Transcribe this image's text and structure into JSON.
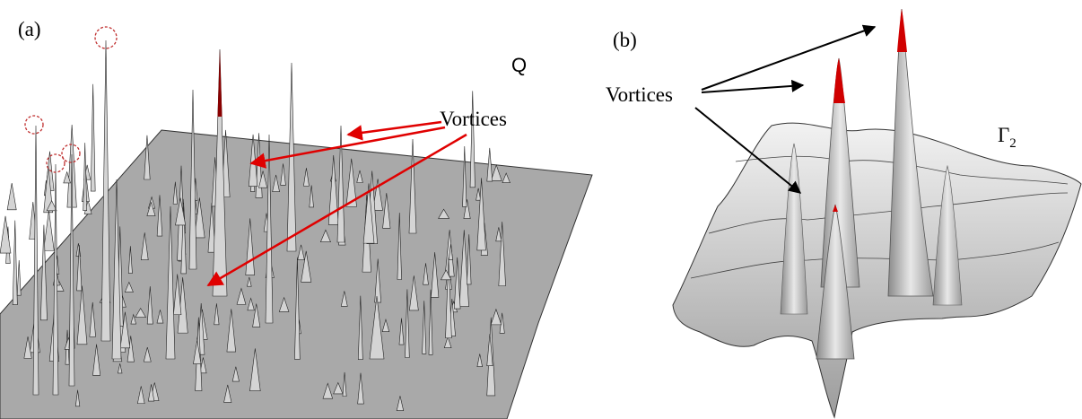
{
  "panels": [
    {
      "label": "(a)",
      "quantity": "Q",
      "annotation": "Vortices"
    },
    {
      "label": "(b)",
      "quantity_symbol": "Γ",
      "quantity_subscript": "2",
      "annotation": "Vortices"
    }
  ]
}
